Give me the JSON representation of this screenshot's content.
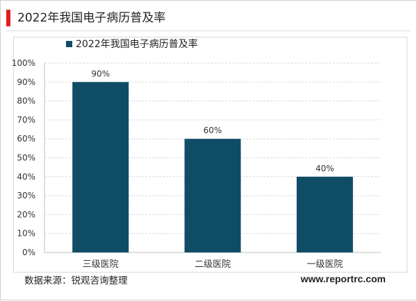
{
  "page": {
    "title": "2022年我国电子病历普及率",
    "source": "数据来源：锐观咨询整理",
    "website": "www.reportrc.com"
  },
  "colors": {
    "bar": "#0f4d67",
    "accent": "#e0201b",
    "grid": "#d9d9d9",
    "axis": "#bfbfbf",
    "text": "#333333"
  },
  "chart_data": {
    "type": "bar",
    "title": "",
    "categories": [
      "三级医院",
      "二级医院",
      "一级医院"
    ],
    "series": [
      {
        "name": "2022年我国电子病历普及率",
        "values": [
          90,
          60,
          40
        ]
      }
    ],
    "data_labels": [
      "90%",
      "60%",
      "40%"
    ],
    "ylim": [
      0,
      100
    ],
    "yticks": [
      "0%",
      "10%",
      "20%",
      "30%",
      "40%",
      "50%",
      "60%",
      "70%",
      "80%",
      "90%",
      "100%"
    ],
    "grid": true,
    "legend": "top-left"
  }
}
